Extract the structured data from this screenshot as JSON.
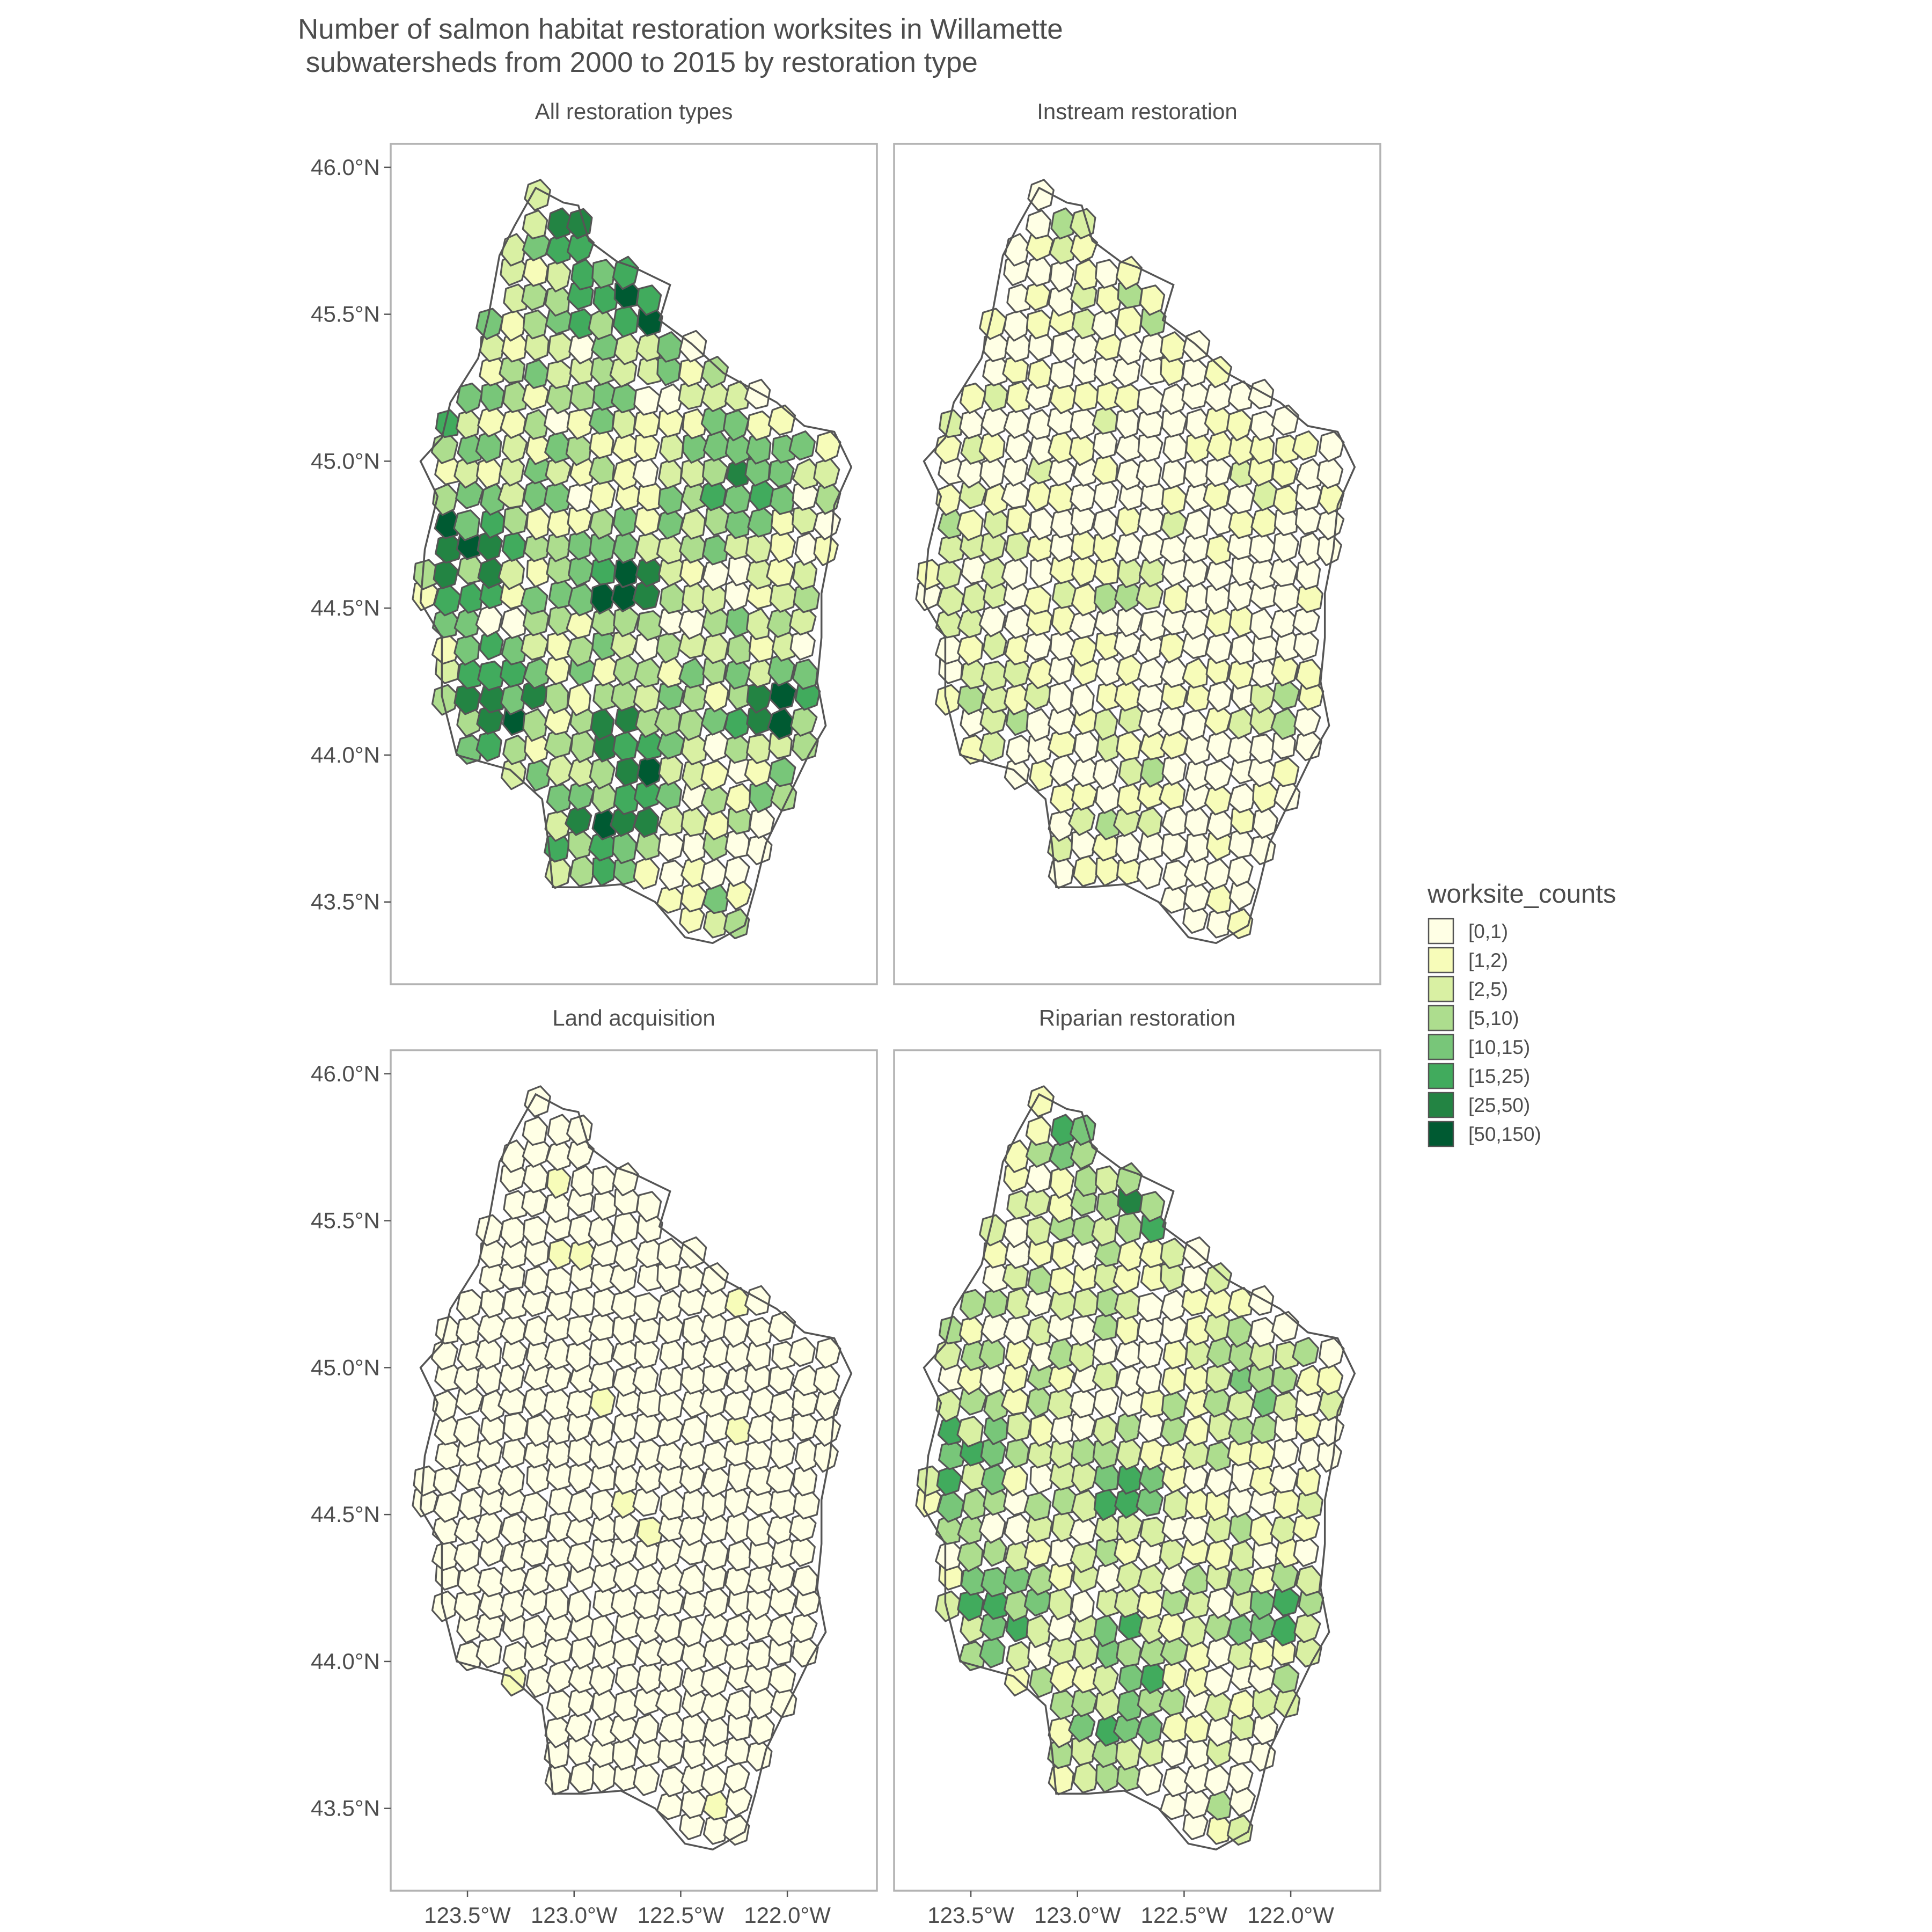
{
  "title_lines": [
    "Number of salmon habitat restoration worksites in Willamette",
    " subwatersheds from 2000 to 2015 by restoration type"
  ],
  "panels": [
    {
      "name": "All restoration types",
      "level_bias": 1.8,
      "spread": 2.2,
      "hotspot_weight": 2.0
    },
    {
      "name": "Instream restoration",
      "level_bias": -0.2,
      "spread": 1.6,
      "hotspot_weight": 0.9
    },
    {
      "name": "Land acquisition",
      "level_bias": -3.0,
      "spread": 0.2,
      "hotspot_weight": 0.0
    },
    {
      "name": "Riparian restoration",
      "level_bias": 0.9,
      "spread": 1.9,
      "hotspot_weight": 1.5
    }
  ],
  "y_axis_labels": [
    "46.0°N",
    "45.5°N",
    "45.0°N",
    "44.5°N",
    "44.0°N",
    "43.5°N"
  ],
  "y_axis_values": [
    46.0,
    45.5,
    45.0,
    44.5,
    44.0,
    43.5
  ],
  "x_axis_labels": [
    "123.5°W",
    "123.0°W",
    "122.5°W",
    "122.0°W"
  ],
  "x_axis_values": [
    -123.5,
    -123.0,
    -122.5,
    -122.0
  ],
  "lat_range": [
    43.22,
    46.08
  ],
  "lon_range": [
    -123.86,
    -121.58
  ],
  "legend": {
    "title": "worksite_counts",
    "items": [
      {
        "label": "[0,1)",
        "color": "#ffffe5"
      },
      {
        "label": "[1,2)",
        "color": "#f7fcb9"
      },
      {
        "label": "[2,5)",
        "color": "#d9f0a3"
      },
      {
        "label": "[5,10)",
        "color": "#addd8e"
      },
      {
        "label": "[10,15)",
        "color": "#78c679"
      },
      {
        "label": "[15,25)",
        "color": "#41ab5d"
      },
      {
        "label": "[25,50)",
        "color": "#238443"
      },
      {
        "label": "[50,150)",
        "color": "#005a32"
      }
    ]
  },
  "map_style": {
    "outline_color": "#555555",
    "grid": false
  }
}
